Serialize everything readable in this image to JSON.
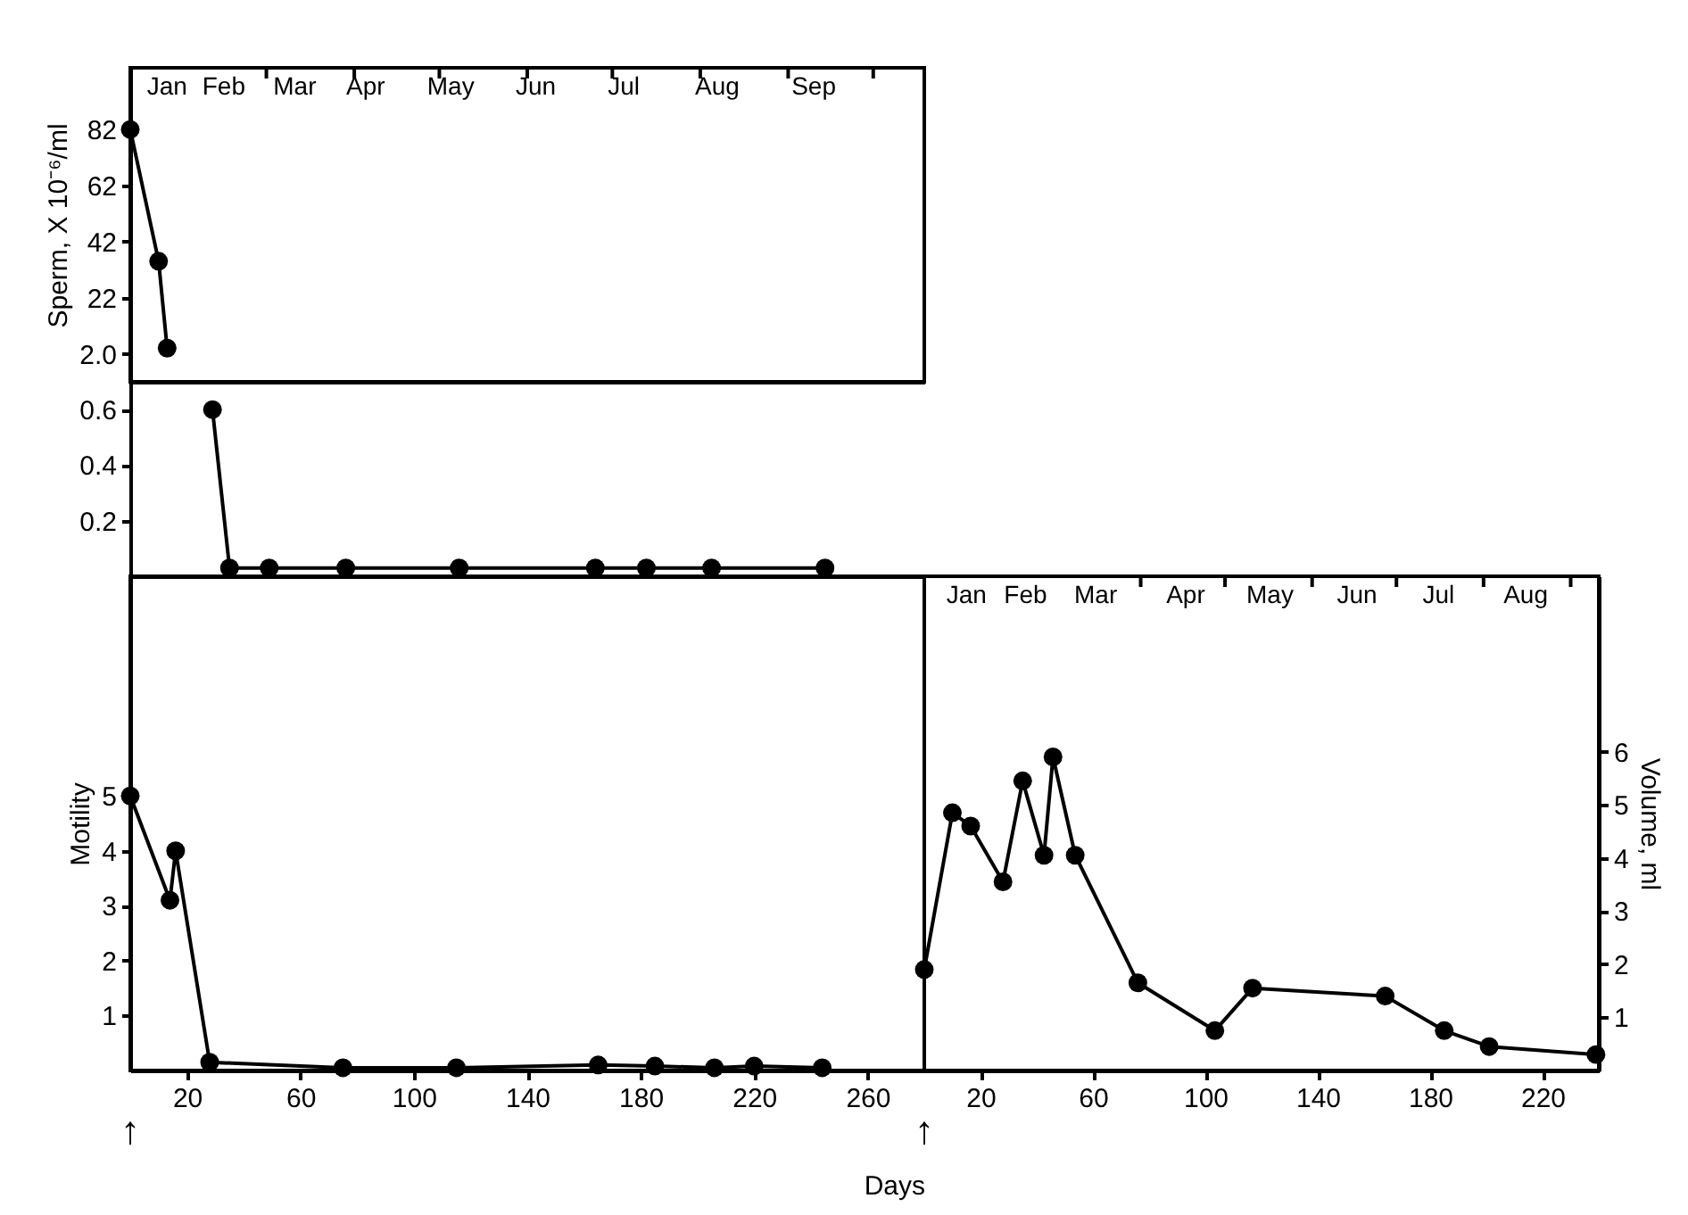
{
  "chart_data": [
    {
      "type": "line",
      "ylabel": "Sperm, X 10⁻⁶/ml",
      "marker": "circle",
      "tick_labels": "y",
      "x": [
        0,
        10,
        13
      ],
      "series": [
        {
          "color": "#000000",
          "values": [
            82,
            35,
            4
          ]
        }
      ],
      "xlim": [
        0,
        280
      ],
      "ylim": [
        -8,
        104
      ],
      "yticks": [
        {
          "value": 2,
          "label": "2.0"
        },
        22,
        42,
        62,
        82
      ],
      "x2lim": [
        "--01-12",
        "--10-19"
      ],
      "x2ticks": [
        {
          "value": "--01-25",
          "label": "Jan"
        },
        {
          "value": "--02-14",
          "label": "Feb"
        },
        {
          "value": "--03-11",
          "label": "Mar"
        },
        {
          "value": "--04-05",
          "label": "Apr"
        },
        {
          "value": "--05-05",
          "label": "May"
        },
        {
          "value": "--06-04",
          "label": "Jun"
        },
        {
          "value": "--07-05",
          "label": "Jul"
        },
        {
          "value": "--08-07",
          "label": "Aug"
        },
        {
          "value": "--09-10",
          "label": "Sep"
        },
        {
          "value": "--03-01",
          "label": null
        },
        {
          "value": "--04-01",
          "label": null
        },
        {
          "value": "--05-01",
          "label": null
        },
        {
          "value": "--06-01",
          "label": null
        },
        {
          "value": "--07-01",
          "label": null
        },
        {
          "value": "--08-01",
          "label": null
        },
        {
          "value": "--09-01",
          "label": null
        },
        {
          "value": "--10-01",
          "label": null
        }
      ]
    },
    {
      "type": "line",
      "marker": "circle",
      "tick_labels": "y",
      "x": [
        29,
        35,
        49,
        76,
        116,
        164,
        182,
        205,
        245
      ],
      "series": [
        {
          "color": "#000000",
          "values": [
            0.6,
            0.03,
            0.03,
            0.03,
            0.03,
            0.03,
            0.03,
            0.03,
            0.03
          ]
        }
      ],
      "xlim": [
        0,
        280
      ],
      "ylim": [
        0,
        0.7
      ],
      "yticks": [
        0.2,
        0.4,
        0.6
      ]
    },
    {
      "type": "line",
      "ylabel": "Motility",
      "xlabel": "Days",
      "marker": "circle",
      "x": [
        0,
        14,
        16,
        28,
        75,
        115,
        165,
        185,
        206,
        220,
        244
      ],
      "series": [
        {
          "color": "#000000",
          "values": [
            5,
            3.1,
            4,
            0.15,
            0.05,
            0.05,
            0.1,
            0.08,
            0.05,
            0.08,
            0.05
          ]
        }
      ],
      "xlim": [
        0,
        280
      ],
      "xticks": [
        20,
        60,
        100,
        140,
        180,
        220,
        260
      ],
      "ylim": [
        0,
        9
      ],
      "yticks": [
        1,
        2,
        3,
        4,
        5
      ],
      "annotations": [
        "↑"
      ]
    },
    {
      "type": "line",
      "y2label": "Volume, ml",
      "marker": "circle",
      "x": [
        0,
        10,
        16.5,
        28,
        35,
        42.6,
        45.8,
        53.7,
        76,
        103.4,
        116.8,
        164,
        185,
        201,
        239
      ],
      "series": [
        {
          "color": "#000000",
          "axis": "y2",
          "values": [
            1.9,
            4.85,
            4.6,
            3.55,
            5.45,
            4.05,
            5.9,
            4.05,
            1.65,
            0.75,
            1.55,
            1.4,
            0.75,
            0.45,
            0.3
          ]
        }
      ],
      "xlim": [
        0,
        240
      ],
      "xticks": [
        20,
        60,
        100,
        140,
        180,
        220
      ],
      "y2lim": [
        0,
        9.3
      ],
      "y2ticks": [
        1,
        2,
        3,
        4,
        5,
        6
      ],
      "x2lim": [
        "--01-14",
        "--09-11"
      ],
      "x2ticks": [
        {
          "value": "--01-29",
          "label": "Jan"
        },
        {
          "value": "--02-19",
          "label": "Feb"
        },
        {
          "value": "--03-16",
          "label": "Mar"
        },
        {
          "value": "--04-17",
          "label": "Apr"
        },
        {
          "value": "--05-17",
          "label": "May"
        },
        {
          "value": "--06-17",
          "label": "Jun"
        },
        {
          "value": "--07-16",
          "label": "Jul"
        },
        {
          "value": "--08-16",
          "label": "Aug"
        },
        {
          "value": "--04-01",
          "label": null
        },
        {
          "value": "--05-01",
          "label": null
        },
        {
          "value": "--06-01",
          "label": null
        },
        {
          "value": "--07-01",
          "label": null
        },
        {
          "value": "--08-01",
          "label": null
        },
        {
          "value": "--09-01",
          "label": null
        }
      ],
      "annotations": [
        "↑"
      ]
    }
  ]
}
